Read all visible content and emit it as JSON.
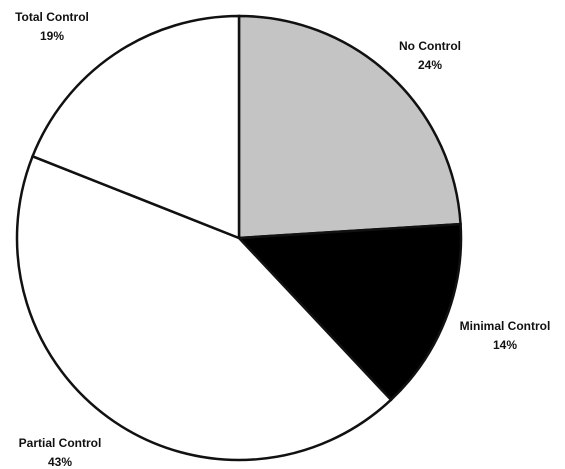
{
  "chart_data": {
    "type": "pie",
    "categories": [
      "No Control",
      "Minimal Control",
      "Partial Control",
      "Total Control"
    ],
    "values": [
      24,
      14,
      43,
      19
    ],
    "value_labels": [
      "24%",
      "14%",
      "43%",
      "19%"
    ],
    "colors": [
      "#c4c4c4",
      "#000000",
      "#ffffff",
      "#ffffff"
    ]
  }
}
